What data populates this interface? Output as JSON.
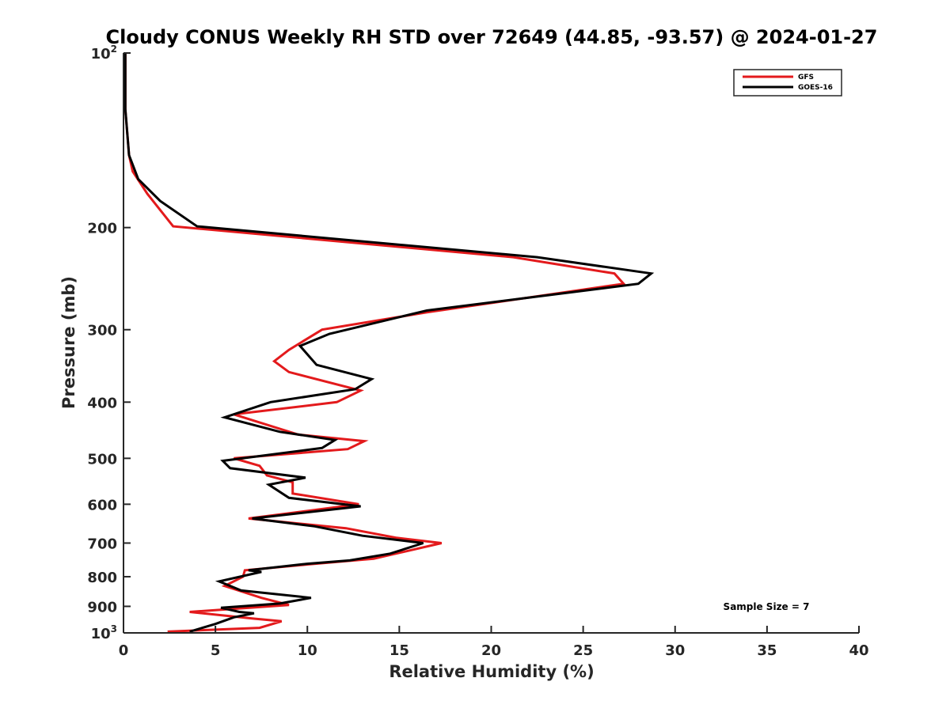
{
  "chart_data": {
    "type": "line",
    "title": "Cloudy CONUS Weekly RH STD over 72649 (44.85, -93.57) @ 2024-01-27",
    "xlabel": "Relative Humidity (%)",
    "ylabel": "Pressure (mb)",
    "xlim": [
      0,
      40
    ],
    "ylim": [
      100,
      1000
    ],
    "y_scale": "log",
    "y_reversed": true,
    "grid": false,
    "legend_position": "top-right",
    "x_ticks": [
      0,
      5,
      10,
      15,
      20,
      25,
      30,
      35,
      40
    ],
    "x_tick_labels": [
      "0",
      "5",
      "10",
      "15",
      "20",
      "25",
      "30",
      "35",
      "40"
    ],
    "y_ticks": [
      100,
      200,
      300,
      400,
      500,
      600,
      700,
      800,
      900,
      1000
    ],
    "y_tick_labels": [
      {
        "base": "10",
        "sup": "2"
      },
      {
        "base": "200",
        "sup": ""
      },
      {
        "base": "300",
        "sup": ""
      },
      {
        "base": "400",
        "sup": ""
      },
      {
        "base": "500",
        "sup": ""
      },
      {
        "base": "600",
        "sup": ""
      },
      {
        "base": "700",
        "sup": ""
      },
      {
        "base": "800",
        "sup": ""
      },
      {
        "base": "900",
        "sup": ""
      },
      {
        "base": "10",
        "sup": "3"
      }
    ],
    "annotation": "Sample Size = 7",
    "series": [
      {
        "name": "GFS",
        "color": "#e31a1c",
        "points": [
          [
            0.1,
            100
          ],
          [
            0.1,
            125
          ],
          [
            0.3,
            150
          ],
          [
            0.5,
            160
          ],
          [
            1.3,
            175
          ],
          [
            2.7,
            199
          ],
          [
            21.2,
            225
          ],
          [
            26.7,
            240
          ],
          [
            27.2,
            250
          ],
          [
            16.5,
            280
          ],
          [
            10.8,
            300
          ],
          [
            9.0,
            325
          ],
          [
            8.2,
            340
          ],
          [
            9.0,
            355
          ],
          [
            12.9,
            382
          ],
          [
            11.6,
            400
          ],
          [
            6.0,
            420
          ],
          [
            9.5,
            455
          ],
          [
            13.1,
            467
          ],
          [
            12.2,
            482
          ],
          [
            6.0,
            500
          ],
          [
            7.4,
            515
          ],
          [
            7.8,
            535
          ],
          [
            9.2,
            550
          ],
          [
            9.2,
            575
          ],
          [
            12.8,
            600
          ],
          [
            6.8,
            635
          ],
          [
            12.1,
            660
          ],
          [
            14.8,
            685
          ],
          [
            17.3,
            700
          ],
          [
            13.6,
            745
          ],
          [
            10.0,
            762
          ],
          [
            6.6,
            780
          ],
          [
            6.5,
            800
          ],
          [
            5.5,
            830
          ],
          [
            7.5,
            870
          ],
          [
            9.0,
            895
          ],
          [
            3.6,
            920
          ],
          [
            7.1,
            945
          ],
          [
            8.6,
            955
          ],
          [
            7.4,
            980
          ],
          [
            2.4,
            995
          ]
        ]
      },
      {
        "name": "GOES-16",
        "color": "#000000",
        "points": [
          [
            0.1,
            100
          ],
          [
            0.1,
            125
          ],
          [
            0.3,
            150
          ],
          [
            0.8,
            165
          ],
          [
            2.0,
            180
          ],
          [
            4.0,
            199
          ],
          [
            22.5,
            225
          ],
          [
            28.7,
            240
          ],
          [
            28.0,
            250
          ],
          [
            16.5,
            278
          ],
          [
            11.2,
            305
          ],
          [
            9.6,
            320
          ],
          [
            10.5,
            345
          ],
          [
            13.5,
            365
          ],
          [
            12.6,
            380
          ],
          [
            8.0,
            400
          ],
          [
            5.5,
            425
          ],
          [
            8.5,
            450
          ],
          [
            11.5,
            465
          ],
          [
            10.8,
            480
          ],
          [
            5.4,
            505
          ],
          [
            5.8,
            520
          ],
          [
            9.9,
            540
          ],
          [
            7.9,
            555
          ],
          [
            9.0,
            585
          ],
          [
            12.9,
            605
          ],
          [
            7.0,
            635
          ],
          [
            10.4,
            655
          ],
          [
            13.0,
            680
          ],
          [
            16.3,
            700
          ],
          [
            14.5,
            730
          ],
          [
            12.3,
            750
          ],
          [
            10.0,
            760
          ],
          [
            6.8,
            780
          ],
          [
            7.5,
            785
          ],
          [
            5.2,
            815
          ],
          [
            6.4,
            845
          ],
          [
            10.2,
            870
          ],
          [
            8.5,
            890
          ],
          [
            5.3,
            905
          ],
          [
            6.3,
            920
          ],
          [
            7.1,
            925
          ],
          [
            6.0,
            940
          ],
          [
            5.0,
            965
          ],
          [
            3.6,
            995
          ]
        ]
      }
    ]
  }
}
